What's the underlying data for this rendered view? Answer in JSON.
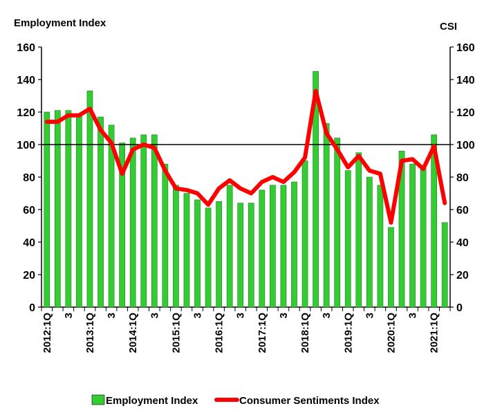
{
  "chart_data": {
    "type": "bar",
    "title": "",
    "left_axis_title": "Employment Index",
    "right_axis_title": "CSI",
    "ylim": [
      0,
      160
    ],
    "y_ticks": [
      0,
      20,
      40,
      60,
      80,
      100,
      120,
      140,
      160
    ],
    "reference_line": 100,
    "categories": [
      "2012:1Q",
      "",
      "3",
      "",
      "2013:1Q",
      "",
      "3",
      "",
      "2014:1Q",
      "",
      "3",
      "",
      "2015:1Q",
      "",
      "3",
      "",
      "2016:1Q",
      "",
      "3",
      "",
      "2017:1Q",
      "",
      "3",
      "",
      "2018:1Q",
      "",
      "3",
      "",
      "2019:1Q",
      "",
      "3",
      "",
      "2020:1Q",
      "",
      "3",
      "",
      "2021:1Q",
      ""
    ],
    "series": [
      {
        "name": "Employment Index",
        "type": "bar",
        "color": "#33cc33",
        "values": [
          120,
          121,
          121,
          119,
          133,
          117,
          112,
          101,
          104,
          106,
          106,
          88,
          75,
          70,
          66,
          61,
          65,
          75,
          64,
          64,
          72,
          75,
          75,
          77,
          90,
          145,
          113,
          104,
          84,
          95,
          80,
          75,
          49,
          96,
          88,
          86,
          106,
          52
        ]
      },
      {
        "name": "Consumer Sentiments Index",
        "type": "line",
        "color": "#ff0000",
        "values": [
          114,
          114,
          118,
          118,
          122,
          109,
          101,
          82,
          97,
          100,
          98,
          84,
          73,
          72,
          70,
          63,
          73,
          78,
          73,
          70,
          77,
          80,
          77,
          83,
          92,
          133,
          107,
          97,
          86,
          93,
          84,
          82,
          52,
          90,
          91,
          85,
          99,
          64
        ]
      }
    ],
    "legend_position": "bottom",
    "grid": false
  }
}
